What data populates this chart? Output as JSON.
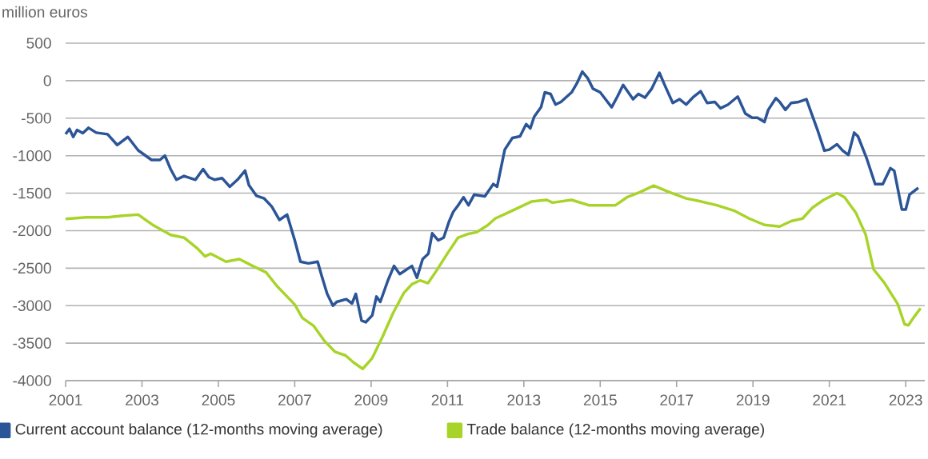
{
  "chart_data": {
    "type": "line",
    "ylabel": "million euros",
    "xlim": [
      2001,
      2023.5
    ],
    "xticks": [
      2001,
      2003,
      2005,
      2007,
      2009,
      2011,
      2013,
      2015,
      2017,
      2019,
      2021,
      2023
    ],
    "ylim": [
      -4000,
      500
    ],
    "yticks": [
      -4000,
      -3500,
      -3000,
      -2500,
      -2000,
      -1500,
      -1000,
      -500,
      0,
      500
    ],
    "grid": "y",
    "legend": "bottom",
    "marker": "none",
    "line_style": "solid",
    "series": [
      {
        "name": "Current account balance (12-months moving average)",
        "color": "#2b5597",
        "x": [
          2001.0,
          2001.1,
          2001.2,
          2001.3,
          2001.45,
          2001.6,
          2001.8,
          2002.1,
          2002.35,
          2002.63,
          2002.9,
          2003.25,
          2003.47,
          2003.6,
          2003.75,
          2003.9,
          2004.1,
          2004.4,
          2004.6,
          2004.75,
          2004.9,
          2005.1,
          2005.3,
          2005.5,
          2005.7,
          2005.8,
          2006.0,
          2006.2,
          2006.4,
          2006.6,
          2006.8,
          2007.0,
          2007.15,
          2007.36,
          2007.6,
          2007.7,
          2007.85,
          2008.0,
          2008.1,
          2008.35,
          2008.5,
          2008.6,
          2008.75,
          2008.86,
          2009.03,
          2009.14,
          2009.24,
          2009.44,
          2009.6,
          2009.75,
          2010.07,
          2010.2,
          2010.35,
          2010.5,
          2010.6,
          2010.76,
          2010.9,
          2011.04,
          2011.15,
          2011.28,
          2011.42,
          2011.55,
          2011.7,
          2011.98,
          2012.2,
          2012.3,
          2012.5,
          2012.7,
          2012.9,
          2013.06,
          2013.17,
          2013.27,
          2013.45,
          2013.55,
          2013.7,
          2013.83,
          2013.97,
          2014.25,
          2014.39,
          2014.53,
          2014.67,
          2014.81,
          2015.0,
          2015.3,
          2015.45,
          2015.6,
          2015.86,
          2016.0,
          2016.17,
          2016.35,
          2016.55,
          2016.7,
          2016.9,
          2017.08,
          2017.25,
          2017.45,
          2017.63,
          2017.8,
          2018.0,
          2018.15,
          2018.35,
          2018.6,
          2018.8,
          2018.98,
          2019.12,
          2019.3,
          2019.4,
          2019.6,
          2019.7,
          2019.85,
          2020.0,
          2020.2,
          2020.4,
          2020.55,
          2020.7,
          2020.87,
          2021.0,
          2021.2,
          2021.35,
          2021.5,
          2021.65,
          2021.75,
          2021.97,
          2022.2,
          2022.4,
          2022.6,
          2022.7,
          2022.9,
          2023.0,
          2023.1,
          2023.33
        ],
        "values": [
          -714,
          -643,
          -750,
          -657,
          -700,
          -629,
          -693,
          -714,
          -857,
          -750,
          -929,
          -1057,
          -1057,
          -1000,
          -1179,
          -1321,
          -1271,
          -1321,
          -1179,
          -1286,
          -1321,
          -1300,
          -1414,
          -1321,
          -1200,
          -1393,
          -1536,
          -1571,
          -1679,
          -1857,
          -1786,
          -2129,
          -2414,
          -2436,
          -2414,
          -2593,
          -2843,
          -3000,
          -2950,
          -2914,
          -2971,
          -2843,
          -3200,
          -3221,
          -3129,
          -2879,
          -2950,
          -2664,
          -2471,
          -2579,
          -2471,
          -2629,
          -2379,
          -2307,
          -2036,
          -2129,
          -2093,
          -1879,
          -1750,
          -1661,
          -1555,
          -1661,
          -1520,
          -1541,
          -1378,
          -1414,
          -919,
          -764,
          -742,
          -580,
          -636,
          -481,
          -354,
          -156,
          -177,
          -318,
          -283,
          -156,
          -35,
          120,
          35,
          -106,
          -156,
          -354,
          -212,
          -57,
          -247,
          -177,
          -226,
          -106,
          106,
          -71,
          -297,
          -247,
          -318,
          -212,
          -141,
          -297,
          -283,
          -368,
          -318,
          -212,
          -438,
          -495,
          -495,
          -551,
          -389,
          -233,
          -283,
          -389,
          -297,
          -283,
          -247,
          -460,
          -672,
          -933,
          -919,
          -848,
          -933,
          -990,
          -693,
          -742,
          -1025,
          -1379,
          -1379,
          -1167,
          -1202,
          -1718,
          -1718,
          -1520,
          -1428
        ]
      },
      {
        "name": "Trade balance (12-months moving average)",
        "color": "#a8d42a",
        "x": [
          2001.0,
          2001.55,
          2002.1,
          2002.5,
          2002.9,
          2003.3,
          2003.6,
          2003.75,
          2004.1,
          2004.45,
          2004.65,
          2004.8,
          2005.2,
          2005.55,
          2005.9,
          2006.25,
          2006.53,
          2006.8,
          2007.0,
          2007.2,
          2007.5,
          2007.78,
          2008.05,
          2008.33,
          2008.54,
          2008.78,
          2009.03,
          2009.3,
          2009.58,
          2009.86,
          2010.07,
          2010.28,
          2010.49,
          2010.7,
          2011.0,
          2011.28,
          2011.55,
          2011.76,
          2012.05,
          2012.25,
          2012.7,
          2013.2,
          2013.6,
          2013.75,
          2014.25,
          2014.7,
          2015.1,
          2015.4,
          2015.7,
          2016.05,
          2016.4,
          2016.8,
          2017.25,
          2017.65,
          2018.05,
          2018.5,
          2018.9,
          2019.3,
          2019.7,
          2020.0,
          2020.3,
          2020.55,
          2020.85,
          2021.2,
          2021.4,
          2021.7,
          2021.95,
          2022.16,
          2022.44,
          2022.79,
          2022.97,
          2023.07,
          2023.21,
          2023.39
        ],
        "values": [
          -1843,
          -1821,
          -1821,
          -1800,
          -1786,
          -1929,
          -2014,
          -2057,
          -2093,
          -2236,
          -2343,
          -2307,
          -2414,
          -2379,
          -2471,
          -2557,
          -2736,
          -2879,
          -2986,
          -3164,
          -3271,
          -3471,
          -3614,
          -3664,
          -3757,
          -3843,
          -3700,
          -3414,
          -3093,
          -2829,
          -2714,
          -2664,
          -2700,
          -2543,
          -2303,
          -2092,
          -2043,
          -2021,
          -1929,
          -1838,
          -1732,
          -1612,
          -1590,
          -1626,
          -1590,
          -1661,
          -1661,
          -1661,
          -1555,
          -1485,
          -1400,
          -1485,
          -1570,
          -1612,
          -1661,
          -1732,
          -1838,
          -1923,
          -1944,
          -1873,
          -1838,
          -1697,
          -1590,
          -1499,
          -1555,
          -1767,
          -2050,
          -2518,
          -2695,
          -2978,
          -3248,
          -3262,
          -3156,
          -3035
        ]
      }
    ]
  }
}
